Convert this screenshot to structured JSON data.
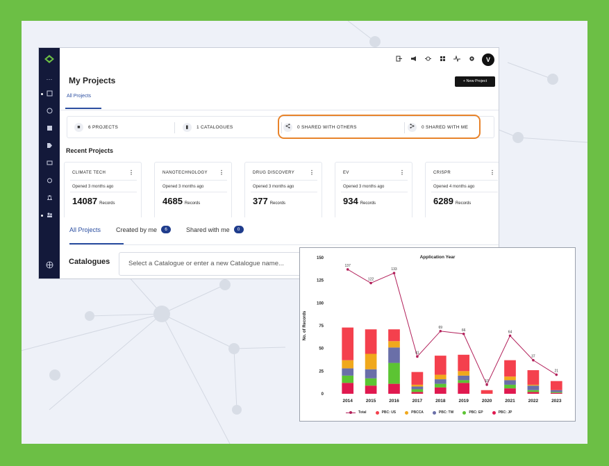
{
  "header": {
    "page_title": "My Projects",
    "new_project_label": "+ New Project",
    "avatar_initial": "V",
    "subtab": "All Projects"
  },
  "stats": [
    {
      "label": "6 PROJECTS"
    },
    {
      "label": "1 CATALOGUES"
    },
    {
      "label": "0 SHARED WITH OTHERS"
    },
    {
      "label": "0 SHARED WITH ME"
    }
  ],
  "recent": {
    "title": "Recent Projects",
    "records_label": "Records",
    "cards": [
      {
        "name": "CLIMATE TECH",
        "opened": "Opened 3 months ago",
        "count": "14087"
      },
      {
        "name": "NANOTECHNOLOGY",
        "opened": "Opened 3 months ago",
        "count": "4685"
      },
      {
        "name": "DRUG DISCOVERY",
        "opened": "Opened 3 months ago",
        "count": "377"
      },
      {
        "name": "EV",
        "opened": "Opened 3 months ago",
        "count": "934"
      },
      {
        "name": "CRISPR",
        "opened": "Opened 4 months ago",
        "count": "6289"
      }
    ]
  },
  "tabs": [
    {
      "label": "All Projects",
      "count": ""
    },
    {
      "label": "Created by me",
      "count": "6"
    },
    {
      "label": "Shared with me",
      "count": "0"
    }
  ],
  "catalogue": {
    "label": "Catalogues",
    "placeholder": "Select a Catalogue or enter a new Catalogue name..."
  },
  "icons": {
    "sidebar": [
      "more-icon",
      "projects-icon",
      "history-icon",
      "save-icon",
      "tag-icon",
      "folder-icon",
      "alarm-icon",
      "bank-icon",
      "users-icon",
      "globe-icon"
    ],
    "topbar": [
      "logout-icon",
      "announcement-icon",
      "bug-icon",
      "apps-icon",
      "activity-icon",
      "gear-icon"
    ]
  },
  "chart_data": {
    "type": "bar",
    "title": "Application Year",
    "ylabel": "No. of Records",
    "xlabel": "",
    "ylim": [
      0,
      150
    ],
    "yticks": [
      0,
      25,
      50,
      75,
      100,
      125,
      150
    ],
    "categories": [
      "2014",
      "2015",
      "2016",
      "2017",
      "2018",
      "2019",
      "2020",
      "2021",
      "2022",
      "2023"
    ],
    "stacked": true,
    "series": [
      {
        "name": "PBC: JP",
        "color": "#e0194f",
        "values": [
          12,
          9,
          11,
          2,
          7,
          12,
          0,
          6,
          2,
          1
        ]
      },
      {
        "name": "PBC: EP",
        "color": "#5cc433",
        "values": [
          8,
          8,
          23,
          3,
          4,
          3,
          0,
          4,
          2,
          1
        ]
      },
      {
        "name": "PBC: TW",
        "color": "#6a6fa8",
        "values": [
          8,
          10,
          17,
          3,
          5,
          5,
          0,
          5,
          5,
          2
        ]
      },
      {
        "name": "PBCCA",
        "color": "#f0a81c",
        "values": [
          9,
          17,
          7,
          2,
          5,
          5,
          0,
          4,
          1,
          0
        ]
      },
      {
        "name": "PBC: US",
        "color": "#f4404d",
        "values": [
          36,
          27,
          13,
          14,
          21,
          18,
          4,
          18,
          16,
          10
        ]
      }
    ],
    "line": {
      "name": "Total",
      "color": "#b2205a",
      "values": [
        137,
        122,
        133,
        41,
        69,
        66,
        10,
        64,
        37,
        21
      ]
    },
    "legend_order": [
      "Total",
      "PBC: US",
      "PBCCA",
      "PBC: TW",
      "PBC: EP",
      "PBC: JP"
    ],
    "legend_position": "bottom"
  }
}
